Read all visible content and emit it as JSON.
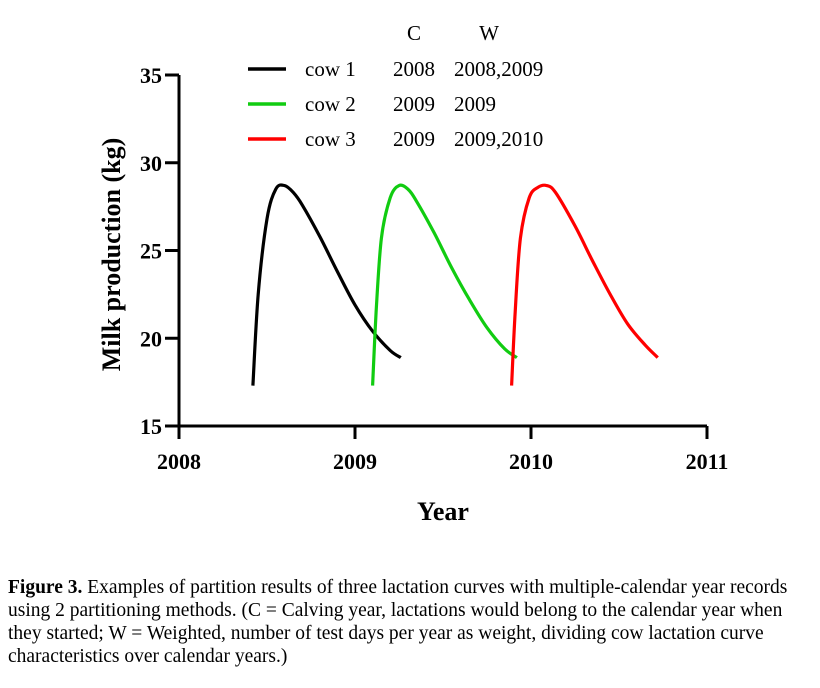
{
  "chart_data": {
    "type": "line",
    "xlabel": "Year",
    "ylabel": "Milk production (kg)",
    "xlim": [
      2008,
      2011
    ],
    "ylim": [
      15,
      35
    ],
    "xticks": [
      "2008",
      "2009",
      "2010",
      "2011"
    ],
    "yticks": [
      "15",
      "20",
      "25",
      "30",
      "35"
    ],
    "grid": false,
    "legend_position": "top",
    "legend_headers": [
      "C",
      "W"
    ],
    "series": [
      {
        "name": "cow 1",
        "color": "#000000",
        "C": "2008",
        "W": "2008,2009",
        "x": [
          2008.42,
          2008.45,
          2008.5,
          2008.55,
          2008.6,
          2008.65,
          2008.7,
          2008.8,
          2008.9,
          2009.0,
          2009.1,
          2009.2,
          2009.26
        ],
        "y": [
          17.3,
          22.5,
          26.8,
          28.5,
          28.7,
          28.3,
          27.6,
          25.8,
          23.8,
          21.9,
          20.4,
          19.3,
          18.9
        ]
      },
      {
        "name": "cow 2",
        "color": "#11cc11",
        "C": "2009",
        "W": "2009",
        "x": [
          2009.1,
          2009.12,
          2009.15,
          2009.2,
          2009.25,
          2009.3,
          2009.35,
          2009.45,
          2009.55,
          2009.65,
          2009.75,
          2009.85,
          2009.92
        ],
        "y": [
          17.3,
          21.5,
          25.7,
          28.0,
          28.7,
          28.5,
          27.8,
          26.0,
          24.0,
          22.2,
          20.6,
          19.4,
          18.9
        ]
      },
      {
        "name": "cow 3",
        "color": "#ff0000",
        "C": "2009",
        "W": "2009,2010",
        "x": [
          2009.89,
          2009.91,
          2009.94,
          2009.99,
          2010.04,
          2010.09,
          2010.14,
          2010.25,
          2010.35,
          2010.45,
          2010.55,
          2010.65,
          2010.72
        ],
        "y": [
          17.3,
          21.5,
          25.7,
          28.0,
          28.6,
          28.7,
          28.3,
          26.4,
          24.4,
          22.5,
          20.8,
          19.6,
          18.9
        ]
      }
    ]
  },
  "caption": {
    "label": "Figure 3.",
    "text": " Examples of partition results of three lactation curves with multiple-calendar year records using 2 partitioning methods. (C = Calving year, lactations would belong to the calendar year when they started; W = Weighted, number of test days per year as weight, dividing cow lactation curve characteristics over calendar years.)"
  }
}
